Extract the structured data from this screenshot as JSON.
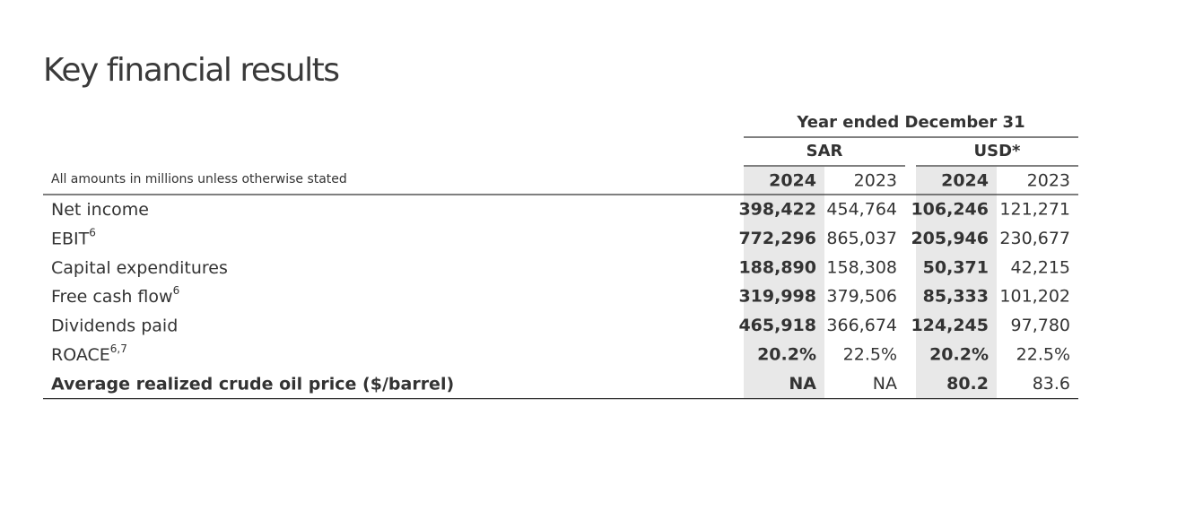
{
  "title": "Key financial results",
  "header": {
    "period": "Year ended December 31",
    "currencies": [
      "SAR",
      "USD*"
    ],
    "years": [
      "2024",
      "2023",
      "2024",
      "2023"
    ],
    "note": "All amounts in millions unless otherwise stated"
  },
  "rows": [
    {
      "label": "Net income",
      "values": [
        "398,422",
        "454,764",
        "106,246",
        "121,271"
      ]
    },
    {
      "label": "EBIT",
      "sup": "6",
      "values": [
        "772,296",
        "865,037",
        "205,946",
        "230,677"
      ]
    },
    {
      "label": "Capital expenditures",
      "values": [
        "188,890",
        "158,308",
        "50,371",
        "42,215"
      ]
    },
    {
      "label": "Free cash flow",
      "sup": "6",
      "values": [
        "319,998",
        "379,506",
        "85,333",
        "101,202"
      ]
    },
    {
      "label": "Dividends paid",
      "values": [
        "465,918",
        "366,674",
        "124,245",
        "97,780"
      ]
    },
    {
      "label": "ROACE",
      "sup": "6,7",
      "values": [
        "20.2%",
        "22.5%",
        "20.2%",
        "22.5%"
      ]
    },
    {
      "label": "Average realized crude oil price ($/barrel)",
      "values": [
        "NA",
        "NA",
        "80.2",
        "83.6"
      ]
    }
  ]
}
